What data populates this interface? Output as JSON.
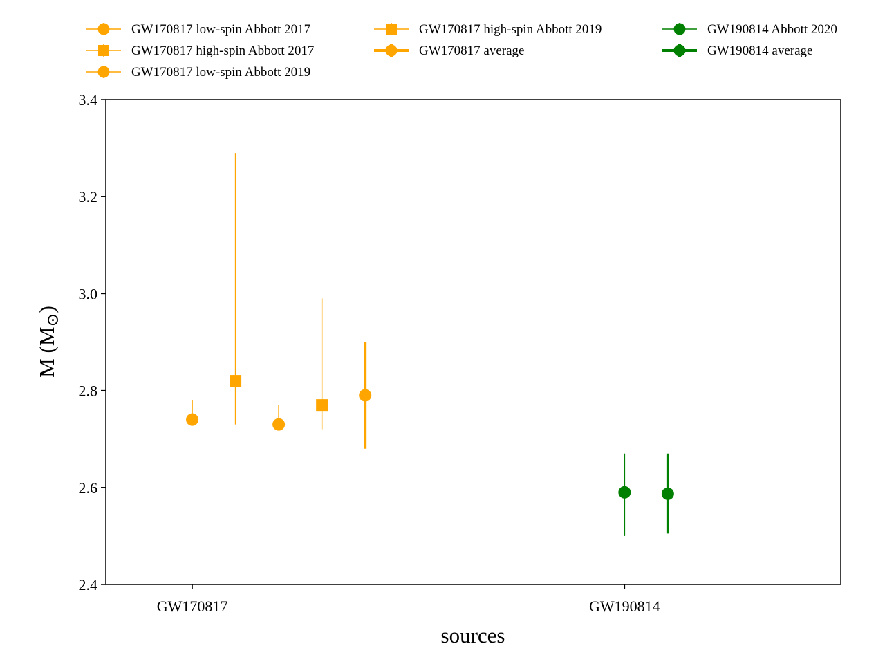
{
  "chart_data": {
    "type": "scatter",
    "xlabel": "sources",
    "ylabel": "M (M",
    "ylabel_symbol": "⊙",
    "ylabel_close": ")",
    "ylim": [
      2.4,
      3.4
    ],
    "yticks": [
      "2.4",
      "2.6",
      "2.8",
      "3.0",
      "3.2",
      "3.4"
    ],
    "categories": [
      "GW170817",
      "GW190814"
    ],
    "xlim": [
      -0.2,
      1.5
    ],
    "grid": false,
    "legend_placement": "top, above plot, 3 columns",
    "series": [
      {
        "name": "GW170817 low-spin Abbott 2017",
        "x": 0.0,
        "y": 2.74,
        "ylow": 2.74,
        "yhigh": 2.78,
        "marker": "circle",
        "color": "#ffa500",
        "linewidth": 1.5
      },
      {
        "name": "GW170817 high-spin Abbott 2017",
        "x": 0.1,
        "y": 2.82,
        "ylow": 2.73,
        "yhigh": 3.29,
        "marker": "square",
        "color": "#ffa500",
        "linewidth": 1.5
      },
      {
        "name": "GW170817 low-spin Abbott 2019",
        "x": 0.2,
        "y": 2.73,
        "ylow": 2.73,
        "yhigh": 2.77,
        "marker": "circle",
        "color": "#ffa500",
        "linewidth": 1.5
      },
      {
        "name": "GW170817 high-spin Abbott 2019",
        "x": 0.3,
        "y": 2.77,
        "ylow": 2.72,
        "yhigh": 2.99,
        "marker": "square",
        "color": "#ffa500",
        "linewidth": 1.5
      },
      {
        "name": "GW170817 average",
        "x": 0.4,
        "y": 2.79,
        "ylow": 2.68,
        "yhigh": 2.9,
        "marker": "circle",
        "color": "#ffa500",
        "linewidth": 4
      },
      {
        "name": "GW190814 Abbott 2020",
        "x": 1.0,
        "y": 2.59,
        "ylow": 2.5,
        "yhigh": 2.67,
        "marker": "circle",
        "color": "#008000",
        "linewidth": 1.5
      },
      {
        "name": "GW190814 average",
        "x": 1.1,
        "y": 2.587,
        "ylow": 2.505,
        "yhigh": 2.67,
        "marker": "circle",
        "color": "#008000",
        "linewidth": 4
      }
    ],
    "legend_columns": [
      [
        0,
        1,
        2
      ],
      [
        3,
        4
      ],
      [
        5,
        6
      ]
    ]
  }
}
